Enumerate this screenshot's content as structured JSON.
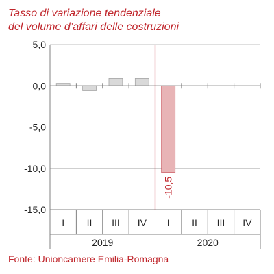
{
  "title_lines": [
    "Tasso di variazione tendenziale",
    "del volume d’affari delle costruzioni"
  ],
  "source": "Fonte: Unioncamere Emilia-Romagna",
  "colors": {
    "title": "#c0262c",
    "bar_2019": "#d9d9d9",
    "bar_2019_border": "#a6a6a6",
    "bar_2020": "#e8b4b6",
    "bar_2020_border": "#c9555d",
    "gridline": "#bfbfbf",
    "axis": "#808080",
    "divider": "#c0262c",
    "tick_text": "#262626",
    "data_label": "#c0262c"
  },
  "chart_data": {
    "type": "bar",
    "ylim": [
      -15,
      5
    ],
    "ytick_step": 5,
    "ytick_labels": [
      "5,0",
      "0,0",
      "-5,0",
      "-10,0",
      "-15,0"
    ],
    "categories": [
      "I",
      "II",
      "III",
      "IV",
      "I",
      "II",
      "III",
      "IV"
    ],
    "groups": [
      {
        "label": "2019",
        "start": 0,
        "count": 4
      },
      {
        "label": "2020",
        "start": 4,
        "count": 4
      }
    ],
    "values": [
      0.3,
      -0.6,
      0.9,
      0.9,
      -10.5,
      null,
      null,
      null
    ],
    "bar_groups": [
      0,
      0,
      0,
      0,
      1,
      1,
      1,
      1
    ],
    "data_labels": [
      {
        "index": 4,
        "text": "-10,5"
      }
    ],
    "divider_after_index": 3,
    "grid": true,
    "legend": "none"
  }
}
